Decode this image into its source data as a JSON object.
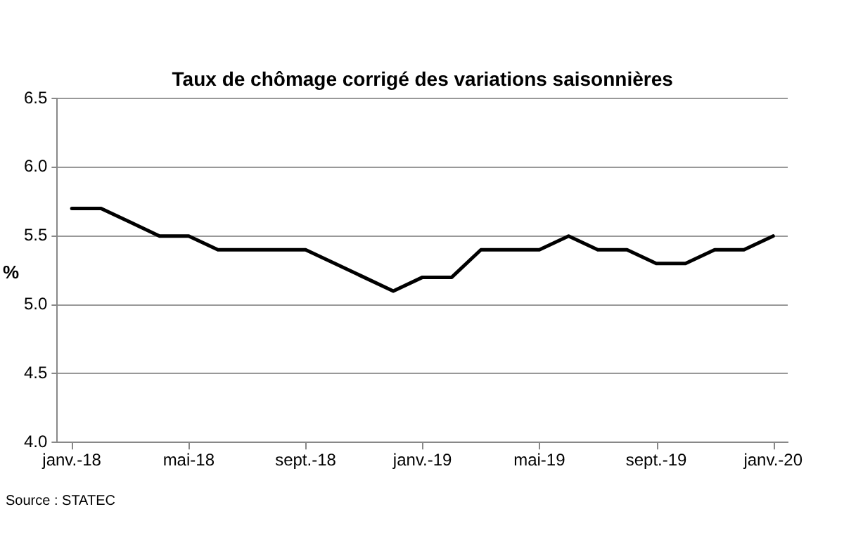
{
  "chart_data": {
    "type": "line",
    "title": "Taux de chômage corrigé des variations saisonnières",
    "ylabel": "%",
    "categories": [
      "janv.-18",
      null,
      null,
      null,
      "mai-18",
      null,
      null,
      null,
      "sept.-18",
      null,
      null,
      null,
      "janv.-19",
      null,
      null,
      null,
      "mai-19",
      null,
      null,
      null,
      "sept.-19",
      null,
      null,
      null,
      "janv.-20"
    ],
    "series": [
      {
        "color": "#000000",
        "values": [
          5.7,
          5.7,
          5.6,
          5.5,
          5.5,
          5.4,
          5.4,
          5.4,
          5.4,
          5.3,
          5.2,
          5.1,
          5.2,
          5.2,
          5.4,
          5.4,
          5.4,
          5.5,
          5.4,
          5.4,
          5.3,
          5.3,
          5.4,
          5.4,
          5.5
        ]
      }
    ],
    "ylim": [
      4.0,
      6.5
    ],
    "yticks": [
      {
        "value": 4.0,
        "label": "4.0"
      },
      {
        "value": 4.5,
        "label": "4.5"
      },
      {
        "value": 5.0,
        "label": "5.0"
      },
      {
        "value": 5.5,
        "label": "5.5"
      },
      {
        "value": 6.0,
        "label": "6.0"
      },
      {
        "value": 6.5,
        "label": "6.5"
      }
    ],
    "grid": "y",
    "legend": false,
    "marker": "none",
    "line_style": "solid",
    "annotations": [
      "Source : STATEC"
    ]
  }
}
